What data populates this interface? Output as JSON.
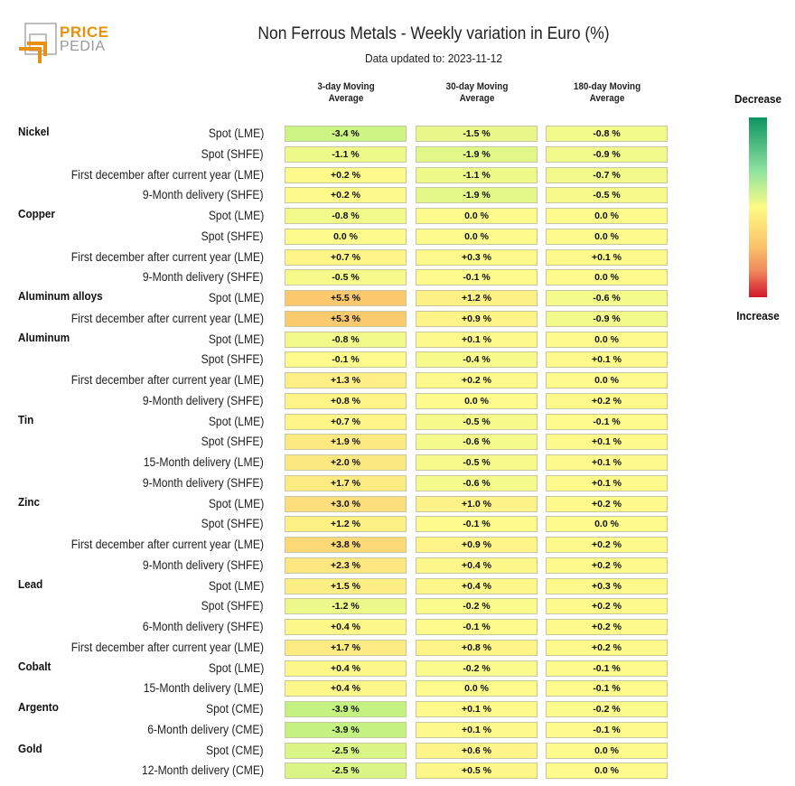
{
  "brand": {
    "name_top": "PRICE",
    "name_bottom": "PEDIA",
    "accent": "#e8900f"
  },
  "header": {
    "title": "Non Ferrous Metals - Weekly variation in Euro (%)",
    "subtitle": "Data updated to: 2023-11-12"
  },
  "legend": {
    "top": "Decrease",
    "bottom": "Increase",
    "colors": [
      "#0e9461",
      "#8fe3a0",
      "#fdfb84",
      "#fbc26a",
      "#f08a5e",
      "#d3162b"
    ]
  },
  "chart_data": {
    "type": "heatmap",
    "title": "Non Ferrous Metals - Weekly variation in Euro (%)",
    "columns": [
      "3-day Moving Average",
      "30-day Moving Average",
      "180-day Moving Average"
    ],
    "column_labels": [
      [
        "3-day Moving",
        "Average"
      ],
      [
        "30-day Moving",
        "Average"
      ],
      [
        "180-day Moving",
        "Average"
      ]
    ],
    "unit": "%",
    "rows": [
      {
        "group": "Nickel",
        "label": "Spot (LME)",
        "values": [
          -3.4,
          -1.5,
          -0.8
        ]
      },
      {
        "group": "",
        "label": "Spot (SHFE)",
        "values": [
          -1.1,
          -1.9,
          -0.9
        ]
      },
      {
        "group": "",
        "label": "First december after current year (LME)",
        "values": [
          0.2,
          -1.1,
          -0.7
        ]
      },
      {
        "group": "",
        "label": "9-Month delivery (SHFE)",
        "values": [
          0.2,
          -1.9,
          -0.5
        ]
      },
      {
        "group": "Copper",
        "label": "Spot (LME)",
        "values": [
          -0.8,
          0.0,
          0.0
        ]
      },
      {
        "group": "",
        "label": "Spot (SHFE)",
        "values": [
          0.0,
          0.0,
          0.0
        ]
      },
      {
        "group": "",
        "label": "First december after current year (LME)",
        "values": [
          0.7,
          0.3,
          0.1
        ]
      },
      {
        "group": "",
        "label": "9-Month delivery (SHFE)",
        "values": [
          -0.5,
          -0.1,
          0.0
        ]
      },
      {
        "group": "Aluminum alloys",
        "label": "Spot (LME)",
        "values": [
          5.5,
          1.2,
          -0.6
        ]
      },
      {
        "group": "",
        "label": "First december after current year (LME)",
        "values": [
          5.3,
          0.9,
          -0.9
        ]
      },
      {
        "group": "Aluminum",
        "label": "Spot (LME)",
        "values": [
          -0.8,
          0.1,
          0.0
        ]
      },
      {
        "group": "",
        "label": "Spot (SHFE)",
        "values": [
          -0.1,
          -0.4,
          0.1
        ]
      },
      {
        "group": "",
        "label": "First december after current year (LME)",
        "values": [
          1.3,
          0.2,
          0.0
        ]
      },
      {
        "group": "",
        "label": "9-Month delivery (SHFE)",
        "values": [
          0.8,
          0.0,
          0.2
        ]
      },
      {
        "group": "Tin",
        "label": "Spot (LME)",
        "values": [
          0.7,
          -0.5,
          -0.1
        ]
      },
      {
        "group": "",
        "label": "Spot (SHFE)",
        "values": [
          1.9,
          -0.6,
          0.1
        ]
      },
      {
        "group": "",
        "label": "15-Month delivery (LME)",
        "values": [
          2.0,
          -0.5,
          0.1
        ]
      },
      {
        "group": "",
        "label": "9-Month delivery (SHFE)",
        "values": [
          1.7,
          -0.6,
          0.1
        ]
      },
      {
        "group": "Zinc",
        "label": "Spot (LME)",
        "values": [
          3.0,
          1.0,
          0.2
        ]
      },
      {
        "group": "",
        "label": "Spot (SHFE)",
        "values": [
          1.2,
          -0.1,
          0.0
        ]
      },
      {
        "group": "",
        "label": "First december after current year (LME)",
        "values": [
          3.8,
          0.9,
          0.2
        ]
      },
      {
        "group": "",
        "label": "9-Month delivery (SHFE)",
        "values": [
          2.3,
          0.4,
          0.2
        ]
      },
      {
        "group": "Lead",
        "label": "Spot (LME)",
        "values": [
          1.5,
          0.4,
          0.3
        ]
      },
      {
        "group": "",
        "label": "Spot (SHFE)",
        "values": [
          -1.2,
          -0.2,
          0.2
        ]
      },
      {
        "group": "",
        "label": "6-Month delivery (SHFE)",
        "values": [
          0.4,
          -0.1,
          0.2
        ]
      },
      {
        "group": "",
        "label": "First december after current year (LME)",
        "values": [
          1.7,
          0.8,
          0.2
        ]
      },
      {
        "group": "Cobalt",
        "label": "Spot (LME)",
        "values": [
          0.4,
          -0.2,
          -0.1
        ]
      },
      {
        "group": "",
        "label": "15-Month delivery (LME)",
        "values": [
          0.4,
          0.0,
          -0.1
        ]
      },
      {
        "group": "Argento",
        "label": "Spot (CME)",
        "values": [
          -3.9,
          0.1,
          -0.2
        ]
      },
      {
        "group": "",
        "label": "6-Month delivery (CME)",
        "values": [
          -3.9,
          0.1,
          -0.1
        ]
      },
      {
        "group": "Gold",
        "label": "Spot (CME)",
        "values": [
          -2.5,
          0.6,
          0.0
        ]
      },
      {
        "group": "",
        "label": "12-Month delivery (CME)",
        "values": [
          -2.5,
          0.5,
          0.0
        ]
      }
    ]
  }
}
